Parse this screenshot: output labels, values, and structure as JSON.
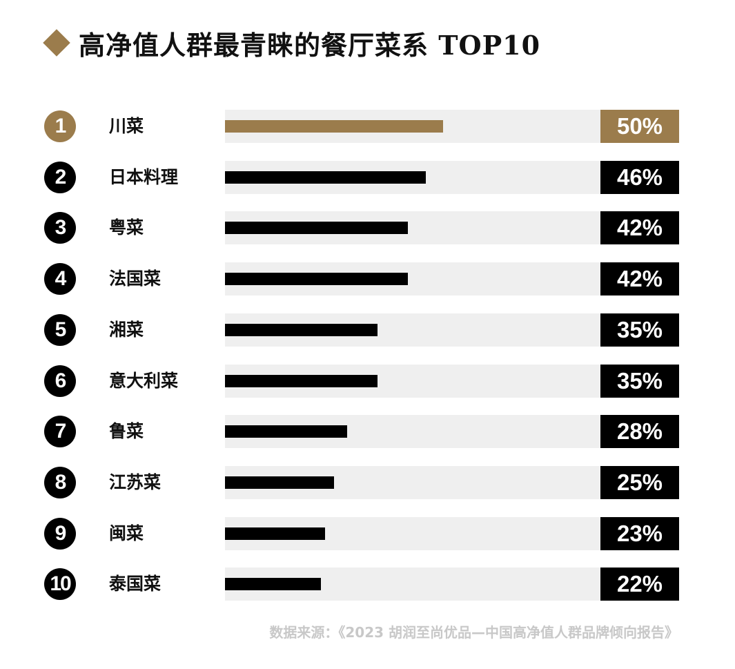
{
  "header": {
    "title": "高净值人群最青睐的餐厅菜系 TOP10"
  },
  "colors": {
    "accent": "#9b7c4c",
    "bar": "#000000",
    "track": "#efefef",
    "source": "#c8c8c8"
  },
  "chart_data": {
    "type": "bar",
    "orientation": "horizontal",
    "title": "高净值人群最青睐的餐厅菜系 TOP10",
    "ranks": [
      "1",
      "2",
      "3",
      "4",
      "5",
      "6",
      "7",
      "8",
      "9",
      "10"
    ],
    "categories": [
      "川菜",
      "日本料理",
      "粤菜",
      "法国菜",
      "湘菜",
      "意大利菜",
      "鲁菜",
      "江苏菜",
      "闽菜",
      "泰国菜"
    ],
    "values": [
      50,
      46,
      42,
      42,
      35,
      35,
      28,
      25,
      23,
      22
    ],
    "value_labels": [
      "50%",
      "46%",
      "42%",
      "42%",
      "35%",
      "35%",
      "28%",
      "25%",
      "23%",
      "22%"
    ],
    "unit": "%",
    "grid": false,
    "legend": "none"
  },
  "footer": {
    "source": "数据来源：《2023 胡润至尚优品—中国高净值人群品牌倾向报告》"
  }
}
